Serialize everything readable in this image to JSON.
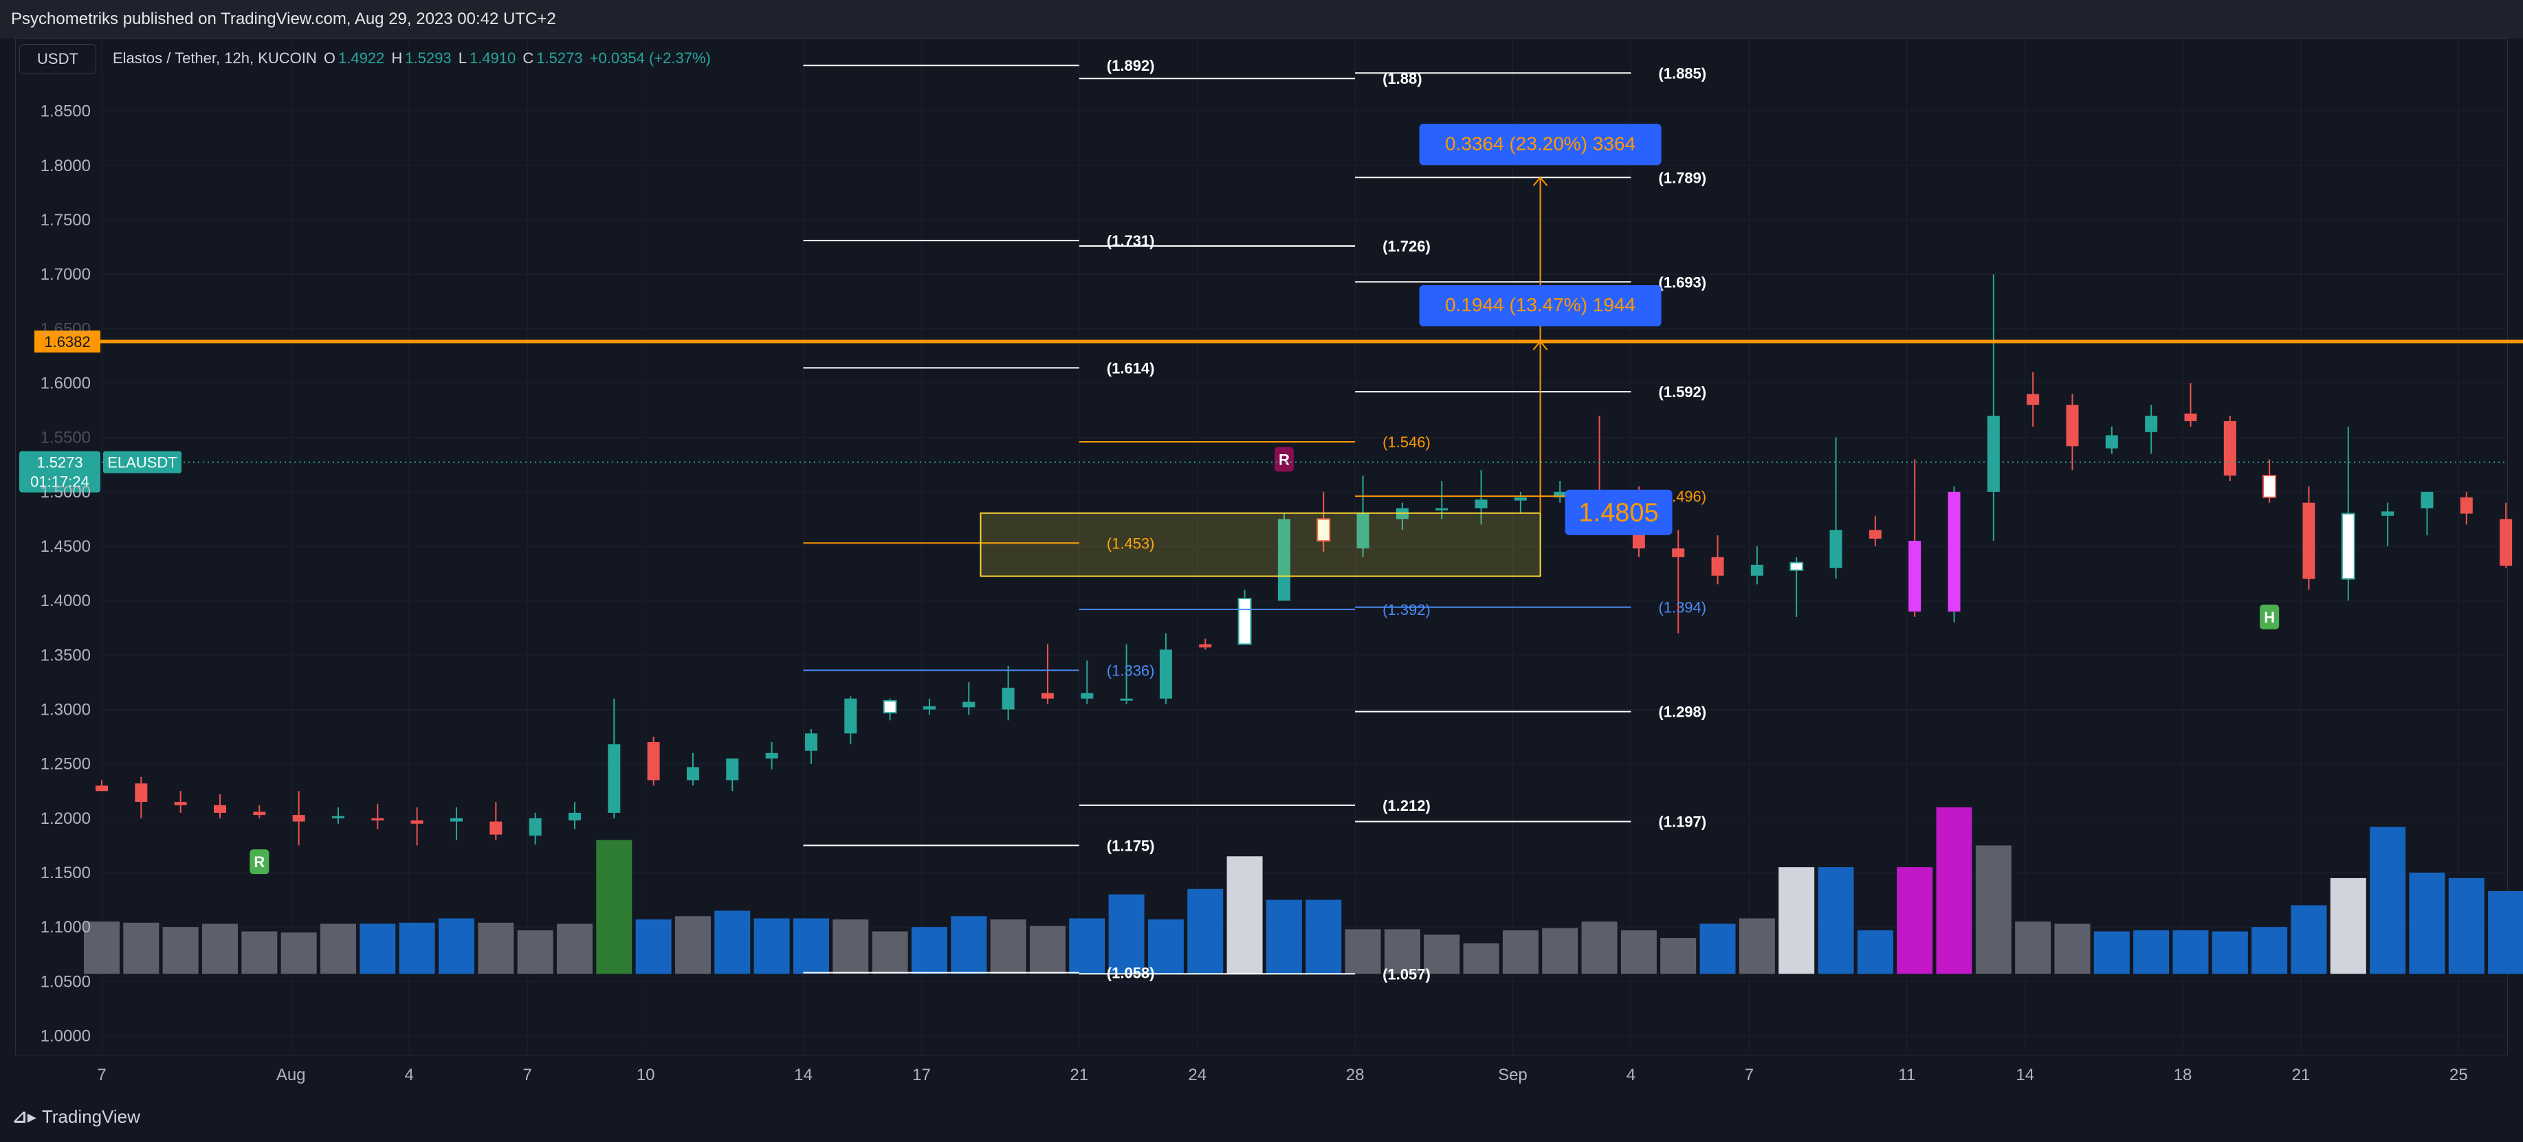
{
  "header": {
    "published": "Psychometriks published on TradingView.com, Aug 29, 2023 00:42 UTC+2"
  },
  "toolbar": {
    "currency_button": "USDT"
  },
  "legend": {
    "symbol": "Elastos / Tether, 12h, KUCOIN",
    "o_label": "O",
    "o_value": "1.4922",
    "h_label": "H",
    "h_value": "1.5293",
    "l_label": "L",
    "l_value": "1.4910",
    "c_label": "C",
    "c_value": "1.5273",
    "change": "+0.0354 (+2.37%)"
  },
  "footer": {
    "brand": "TradingView"
  },
  "colors": {
    "bg": "#131722",
    "grid": "#1e2230",
    "up": "#26a69a",
    "down": "#ef5350",
    "orange": "#ff9800",
    "blue": "#2962ff",
    "white": "#ffffff",
    "magenta": "#e040fb",
    "vol_gray": "#5d606b",
    "vol_blue": "#1565c0",
    "vol_green": "#2e7d32"
  },
  "chart_data": {
    "type": "candlestick",
    "title": "Elastos / Tether, 12h, KUCOIN",
    "ylim": [
      0.97,
      1.89
    ],
    "y_ticks": [
      "1.8500",
      "1.8000",
      "1.7500",
      "1.7000",
      "1.6500",
      "1.6000",
      "1.5500",
      "1.5000",
      "1.4500",
      "1.4000",
      "1.3500",
      "1.3000",
      "1.2500",
      "1.2000",
      "1.1500",
      "1.1000",
      "1.0500",
      "1.0000"
    ],
    "x_ticks": [
      {
        "label": "7",
        "x": 0
      },
      {
        "label": "Aug",
        "x": 4.8
      },
      {
        "label": "4",
        "x": 7.8
      },
      {
        "label": "7",
        "x": 10.8
      },
      {
        "label": "10",
        "x": 13.8
      },
      {
        "label": "14",
        "x": 17.8
      },
      {
        "label": "17",
        "x": 20.8
      },
      {
        "label": "21",
        "x": 24.8
      },
      {
        "label": "24",
        "x": 27.8
      },
      {
        "label": "28",
        "x": 31.8
      },
      {
        "label": "Sep",
        "x": 35.8
      },
      {
        "label": "4",
        "x": 38.8
      },
      {
        "label": "7",
        "x": 41.8
      },
      {
        "label": "11",
        "x": 45.8
      },
      {
        "label": "14",
        "x": 48.8
      },
      {
        "label": "18",
        "x": 52.8
      },
      {
        "label": "21",
        "x": 55.8
      },
      {
        "label": "25",
        "x": 59.8
      }
    ],
    "x_range": [
      0,
      61.2
    ],
    "candles": [
      {
        "o": 1.23,
        "h": 1.235,
        "l": 1.225,
        "c": 1.225,
        "v": 1.105
      },
      {
        "o": 1.232,
        "h": 1.238,
        "l": 1.2,
        "c": 1.215,
        "v": 1.104
      },
      {
        "o": 1.215,
        "h": 1.225,
        "l": 1.205,
        "c": 1.212,
        "v": 1.1
      },
      {
        "o": 1.212,
        "h": 1.222,
        "l": 1.2,
        "c": 1.205,
        "v": 1.103
      },
      {
        "o": 1.206,
        "h": 1.212,
        "l": 1.2,
        "c": 1.203,
        "v": 1.096
      },
      {
        "o": 1.203,
        "h": 1.225,
        "l": 1.175,
        "c": 1.197,
        "v": 1.095
      },
      {
        "o": 1.2,
        "h": 1.21,
        "l": 1.195,
        "c": 1.202,
        "v": 1.103
      },
      {
        "o": 1.2,
        "h": 1.213,
        "l": 1.19,
        "c": 1.198,
        "v": 1.103
      },
      {
        "o": 1.198,
        "h": 1.21,
        "l": 1.175,
        "c": 1.195,
        "v": 1.104
      },
      {
        "o": 1.197,
        "h": 1.21,
        "l": 1.18,
        "c": 1.2,
        "v": 1.108
      },
      {
        "o": 1.197,
        "h": 1.215,
        "l": 1.18,
        "c": 1.185,
        "v": 1.104
      },
      {
        "o": 1.184,
        "h": 1.205,
        "l": 1.176,
        "c": 1.2,
        "v": 1.097
      },
      {
        "o": 1.198,
        "h": 1.215,
        "l": 1.19,
        "c": 1.205,
        "v": 1.103
      },
      {
        "o": 1.205,
        "h": 1.31,
        "l": 1.2,
        "c": 1.268,
        "v": 1.18
      },
      {
        "o": 1.27,
        "h": 1.275,
        "l": 1.23,
        "c": 1.235,
        "v": 1.107
      },
      {
        "o": 1.235,
        "h": 1.26,
        "l": 1.23,
        "c": 1.247,
        "v": 1.11
      },
      {
        "o": 1.235,
        "h": 1.255,
        "l": 1.225,
        "c": 1.255,
        "v": 1.115
      },
      {
        "o": 1.255,
        "h": 1.27,
        "l": 1.245,
        "c": 1.26,
        "v": 1.108
      },
      {
        "o": 1.262,
        "h": 1.282,
        "l": 1.25,
        "c": 1.278,
        "v": 1.108
      },
      {
        "o": 1.278,
        "h": 1.312,
        "l": 1.268,
        "c": 1.31,
        "v": 1.107
      },
      {
        "o": 1.297,
        "h": 1.31,
        "l": 1.29,
        "c": 1.308,
        "v": 1.096
      },
      {
        "o": 1.3,
        "h": 1.31,
        "l": 1.295,
        "c": 1.303,
        "v": 1.1
      },
      {
        "o": 1.302,
        "h": 1.325,
        "l": 1.295,
        "c": 1.307,
        "v": 1.11
      },
      {
        "o": 1.3,
        "h": 1.34,
        "l": 1.29,
        "c": 1.32,
        "v": 1.107
      },
      {
        "o": 1.315,
        "h": 1.36,
        "l": 1.305,
        "c": 1.31,
        "v": 1.101
      },
      {
        "o": 1.31,
        "h": 1.345,
        "l": 1.305,
        "c": 1.315,
        "v": 1.108
      },
      {
        "o": 1.31,
        "h": 1.36,
        "l": 1.305,
        "c": 1.31,
        "v": 1.13
      },
      {
        "o": 1.31,
        "h": 1.37,
        "l": 1.305,
        "c": 1.355,
        "v": 1.107
      },
      {
        "o": 1.36,
        "h": 1.365,
        "l": 1.355,
        "c": 1.357,
        "v": 1.135
      },
      {
        "o": 1.36,
        "h": 1.41,
        "l": 1.36,
        "c": 1.402,
        "v": 1.165
      },
      {
        "o": 1.4,
        "h": 1.48,
        "l": 1.4,
        "c": 1.475,
        "v": 1.125
      },
      {
        "o": 1.475,
        "h": 1.5,
        "l": 1.445,
        "c": 1.455,
        "v": 1.125
      },
      {
        "o": 1.448,
        "h": 1.515,
        "l": 1.44,
        "c": 1.48,
        "v": 1.098
      },
      {
        "o": 1.475,
        "h": 1.49,
        "l": 1.465,
        "c": 1.485,
        "v": 1.098
      },
      {
        "o": 1.483,
        "h": 1.51,
        "l": 1.475,
        "c": 1.485,
        "v": 1.093
      },
      {
        "o": 1.485,
        "h": 1.52,
        "l": 1.47,
        "c": 1.493,
        "v": 1.085
      },
      {
        "o": 1.492,
        "h": 1.5,
        "l": 1.48,
        "c": 1.495,
        "v": 1.097
      },
      {
        "o": 1.495,
        "h": 1.51,
        "l": 1.49,
        "c": 1.5,
        "v": 1.099
      },
      {
        "o": 1.5,
        "h": 1.57,
        "l": 1.49,
        "c": 1.494,
        "v": 1.105
      },
      {
        "o": 1.494,
        "h": 1.505,
        "l": 1.44,
        "c": 1.448,
        "v": 1.097
      },
      {
        "o": 1.448,
        "h": 1.465,
        "l": 1.37,
        "c": 1.44,
        "v": 1.09
      },
      {
        "o": 1.44,
        "h": 1.46,
        "l": 1.415,
        "c": 1.423,
        "v": 1.103
      },
      {
        "o": 1.423,
        "h": 1.45,
        "l": 1.415,
        "c": 1.433,
        "v": 1.108
      },
      {
        "o": 1.428,
        "h": 1.44,
        "l": 1.385,
        "c": 1.435,
        "v": 1.155
      },
      {
        "o": 1.43,
        "h": 1.55,
        "l": 1.42,
        "c": 1.465,
        "v": 1.155
      },
      {
        "o": 1.465,
        "h": 1.478,
        "l": 1.45,
        "c": 1.457,
        "v": 1.097
      },
      {
        "o": 1.455,
        "h": 1.53,
        "l": 1.385,
        "c": 1.39,
        "v": 1.155
      },
      {
        "o": 1.39,
        "h": 1.505,
        "l": 1.38,
        "c": 1.5,
        "v": 1.21
      },
      {
        "o": 1.5,
        "h": 1.7,
        "l": 1.455,
        "c": 1.57,
        "v": 1.175
      },
      {
        "o": 1.59,
        "h": 1.61,
        "l": 1.56,
        "c": 1.58,
        "v": 1.105
      },
      {
        "o": 1.58,
        "h": 1.59,
        "l": 1.52,
        "c": 1.542,
        "v": 1.103
      },
      {
        "o": 1.54,
        "h": 1.56,
        "l": 1.535,
        "c": 1.552,
        "v": 1.096
      },
      {
        "o": 1.555,
        "h": 1.58,
        "l": 1.535,
        "c": 1.57,
        "v": 1.097
      },
      {
        "o": 1.572,
        "h": 1.6,
        "l": 1.56,
        "c": 1.565,
        "v": 1.097
      },
      {
        "o": 1.565,
        "h": 1.57,
        "l": 1.51,
        "c": 1.515,
        "v": 1.096
      },
      {
        "o": 1.515,
        "h": 1.53,
        "l": 1.49,
        "c": 1.495,
        "v": 1.1
      },
      {
        "o": 1.49,
        "h": 1.505,
        "l": 1.41,
        "c": 1.42,
        "v": 1.12
      },
      {
        "o": 1.42,
        "h": 1.56,
        "l": 1.4,
        "c": 1.48,
        "v": 1.145
      },
      {
        "o": 1.478,
        "h": 1.49,
        "l": 1.45,
        "c": 1.482,
        "v": 1.192
      },
      {
        "o": 1.485,
        "h": 1.5,
        "l": 1.46,
        "c": 1.5,
        "v": 1.15
      },
      {
        "o": 1.495,
        "h": 1.5,
        "l": 1.47,
        "c": 1.48,
        "v": 1.145
      },
      {
        "o": 1.475,
        "h": 1.49,
        "l": 1.43,
        "c": 1.432,
        "v": 1.133
      },
      {
        "o": 1.432,
        "h": 1.52,
        "l": 1.43,
        "c": 1.51,
        "v": 1.175
      },
      {
        "o": 1.505,
        "h": 1.52,
        "l": 1.5,
        "c": 1.515,
        "v": 1.15
      },
      {
        "o": 1.515,
        "h": 1.525,
        "l": 1.5,
        "c": 1.52,
        "v": 1.1
      },
      {
        "o": 1.52,
        "h": 1.525,
        "l": 1.495,
        "c": 1.5,
        "v": 1.104
      },
      {
        "o": 1.5,
        "h": 1.51,
        "l": 1.485,
        "c": 1.49,
        "v": 1.101
      },
      {
        "o": 1.487,
        "h": 1.5,
        "l": 1.48,
        "c": 1.492,
        "v": 1.097
      },
      {
        "o": 1.492,
        "h": 1.5293,
        "l": 1.491,
        "c": 1.5273,
        "v": 1.09
      }
    ],
    "special_candles": {
      "20": "white",
      "29": "white",
      "31": "white",
      "43": "white",
      "46": "magenta",
      "47": "magenta",
      "55": "white",
      "57": "white"
    },
    "special_volumes": {
      "13": "green",
      "29": "white",
      "43": "white",
      "46": "magenta",
      "47": "magenta",
      "57": "white"
    },
    "blue_volumes": [
      7,
      8,
      9,
      14,
      16,
      17,
      18,
      21,
      22,
      25,
      26,
      27,
      28,
      30,
      31,
      41,
      44,
      45,
      51,
      52,
      53,
      54,
      55,
      56,
      58,
      59,
      60,
      61,
      62,
      63
    ],
    "horizontal_levels": [
      {
        "x1": 17.8,
        "x2": 24.8,
        "y": 1.892,
        "color": "white",
        "label": "(1.892)"
      },
      {
        "x1": 24.8,
        "x2": 31.8,
        "y": 1.88,
        "color": "white",
        "label": "(1.88)"
      },
      {
        "x1": 31.8,
        "x2": 38.8,
        "y": 1.885,
        "color": "white",
        "label": "(1.885)"
      },
      {
        "x1": 31.8,
        "x2": 38.8,
        "y": 1.789,
        "color": "white",
        "label": "(1.789)"
      },
      {
        "x1": 17.8,
        "x2": 24.8,
        "y": 1.731,
        "color": "white",
        "label": "(1.731)"
      },
      {
        "x1": 24.8,
        "x2": 31.8,
        "y": 1.726,
        "color": "white",
        "label": "(1.726)"
      },
      {
        "x1": 31.8,
        "x2": 38.8,
        "y": 1.693,
        "color": "white",
        "label": "(1.693)"
      },
      {
        "x1": 17.8,
        "x2": 24.8,
        "y": 1.614,
        "color": "white",
        "label": "(1.614)"
      },
      {
        "x1": 31.8,
        "x2": 38.8,
        "y": 1.592,
        "color": "white",
        "label": "(1.592)"
      },
      {
        "x1": 24.8,
        "x2": 31.8,
        "y": 1.546,
        "color": "orange",
        "label": "(1.546)"
      },
      {
        "x1": 31.8,
        "x2": 38.8,
        "y": 1.496,
        "color": "orange",
        "label": "(1.496)"
      },
      {
        "x1": 17.8,
        "x2": 24.8,
        "y": 1.453,
        "color": "orange",
        "label": "(1.453)"
      },
      {
        "x1": 24.8,
        "x2": 31.8,
        "y": 1.392,
        "color": "blue",
        "label": "(1.392)"
      },
      {
        "x1": 31.8,
        "x2": 38.8,
        "y": 1.394,
        "color": "blue",
        "label": "(1.394)"
      },
      {
        "x1": 17.8,
        "x2": 24.8,
        "y": 1.336,
        "color": "blue",
        "label": "(1.336)"
      },
      {
        "x1": 31.8,
        "x2": 38.8,
        "y": 1.298,
        "color": "white",
        "label": "(1.298)"
      },
      {
        "x1": 24.8,
        "x2": 31.8,
        "y": 1.212,
        "color": "white",
        "label": "(1.212)"
      },
      {
        "x1": 31.8,
        "x2": 38.8,
        "y": 1.197,
        "color": "white",
        "label": "(1.197)"
      },
      {
        "x1": 17.8,
        "x2": 24.8,
        "y": 1.175,
        "color": "white",
        "label": "(1.175)"
      },
      {
        "x1": 17.8,
        "x2": 24.8,
        "y": 1.058,
        "color": "white",
        "label": "(1.058)"
      },
      {
        "x1": 24.8,
        "x2": 31.8,
        "y": 1.057,
        "color": "white",
        "label": "(1.057)"
      }
    ],
    "resistance_line": {
      "y": 1.6382,
      "label": "1.6382"
    },
    "zone": {
      "x1": 22.3,
      "x2": 36.5,
      "y1": 1.4805,
      "y2": 1.4225
    },
    "entry_label": "1.4805",
    "targets": [
      {
        "y": 1.6382,
        "label": "0.1944 (13.47%) 1944"
      },
      {
        "y": 1.789,
        "label": "0.3364 (23.20%) 3364"
      }
    ],
    "markers": [
      {
        "i": 4,
        "y": 1.16,
        "text": "R",
        "color": "#4caf50"
      },
      {
        "i": 30,
        "y": 1.53,
        "text": "R",
        "color": "#880e4f"
      },
      {
        "i": 55,
        "y": 1.385,
        "text": "H",
        "color": "#4caf50"
      }
    ],
    "price_tag": {
      "price": "1.5273",
      "countdown": "01:17:24",
      "symbol": "ELAUSDT"
    }
  }
}
